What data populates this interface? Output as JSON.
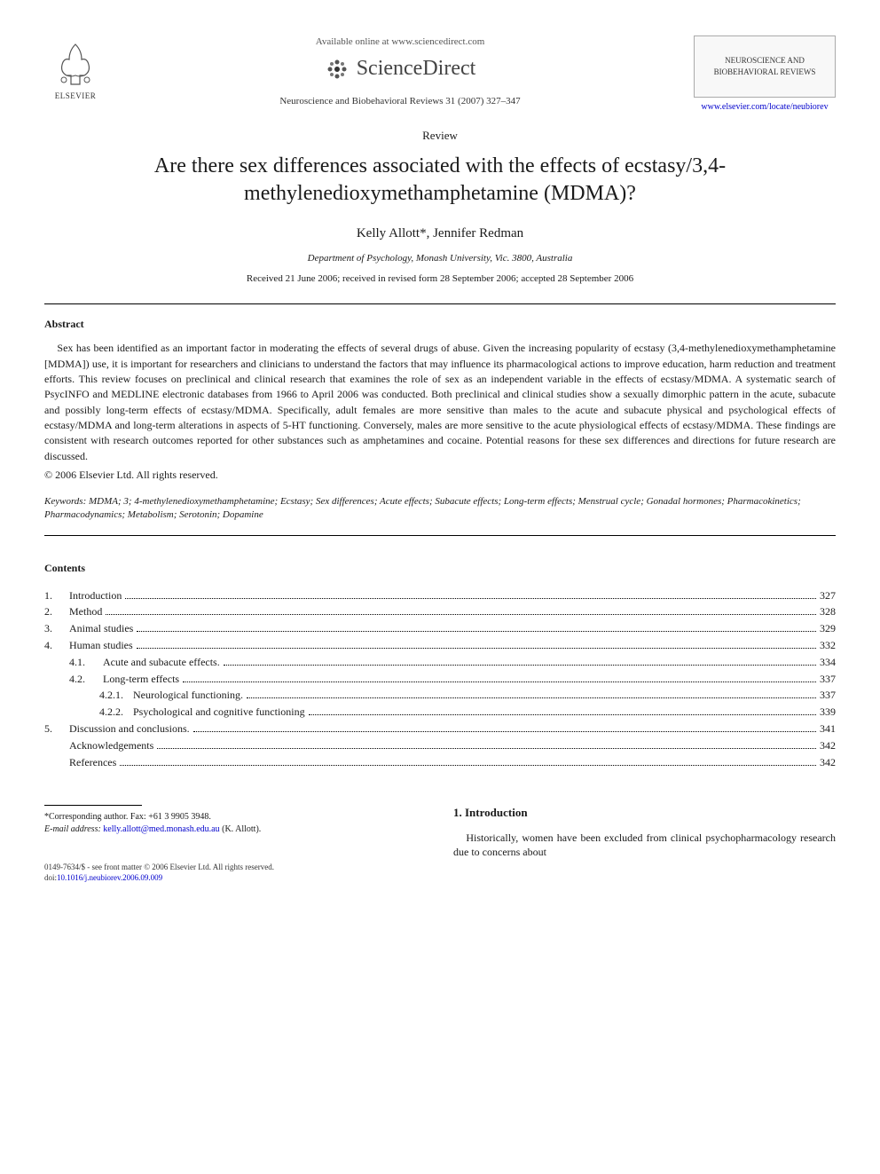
{
  "header": {
    "available_online": "Available online at www.sciencedirect.com",
    "sciencedirect": "ScienceDirect",
    "journal_ref": "Neuroscience and Biobehavioral Reviews 31 (2007) 327–347",
    "journal_box": "NEUROSCIENCE AND BIOBEHAVIORAL REVIEWS",
    "journal_link": "www.elsevier.com/locate/neubiorev",
    "elsevier": "ELSEVIER"
  },
  "article": {
    "type": "Review",
    "title": "Are there sex differences associated with the effects of ecstasy/3,4-methylenedioxymethamphetamine (MDMA)?",
    "authors": "Kelly Allott*, Jennifer Redman",
    "affiliation": "Department of Psychology, Monash University, Vic. 3800, Australia",
    "dates": "Received 21 June 2006; received in revised form 28 September 2006; accepted 28 September 2006"
  },
  "abstract": {
    "heading": "Abstract",
    "text": "Sex has been identified as an important factor in moderating the effects of several drugs of abuse. Given the increasing popularity of ecstasy (3,4-methylenedioxymethamphetamine [MDMA]) use, it is important for researchers and clinicians to understand the factors that may influence its pharmacological actions to improve education, harm reduction and treatment efforts. This review focuses on preclinical and clinical research that examines the role of sex as an independent variable in the effects of ecstasy/MDMA. A systematic search of PsycINFO and MEDLINE electronic databases from 1966 to April 2006 was conducted. Both preclinical and clinical studies show a sexually dimorphic pattern in the acute, subacute and possibly long-term effects of ecstasy/MDMA. Specifically, adult females are more sensitive than males to the acute and subacute physical and psychological effects of ecstasy/MDMA and long-term alterations in aspects of 5-HT functioning. Conversely, males are more sensitive to the acute physiological effects of ecstasy/MDMA. These findings are consistent with research outcomes reported for other substances such as amphetamines and cocaine. Potential reasons for these sex differences and directions for future research are discussed.",
    "copyright": "© 2006 Elsevier Ltd. All rights reserved."
  },
  "keywords": {
    "label": "Keywords:",
    "text": "MDMA; 3; 4-methylenedioxymethamphetamine; Ecstasy; Sex differences; Acute effects; Subacute effects; Long-term effects; Menstrual cycle; Gonadal hormones; Pharmacokinetics; Pharmacodynamics; Metabolism; Serotonin; Dopamine"
  },
  "contents": {
    "heading": "Contents",
    "items": [
      {
        "num": "1.",
        "label": "Introduction",
        "page": "327",
        "indent": 0
      },
      {
        "num": "2.",
        "label": "Method",
        "page": "328",
        "indent": 0
      },
      {
        "num": "3.",
        "label": "Animal studies",
        "page": "329",
        "indent": 0
      },
      {
        "num": "4.",
        "label": "Human studies",
        "page": "332",
        "indent": 0
      },
      {
        "num": "4.1.",
        "label": "Acute and subacute effects.",
        "page": "334",
        "indent": 1
      },
      {
        "num": "4.2.",
        "label": "Long-term effects",
        "page": "337",
        "indent": 1
      },
      {
        "num": "4.2.1.",
        "label": "Neurological functioning.",
        "page": "337",
        "indent": 2
      },
      {
        "num": "4.2.2.",
        "label": "Psychological and cognitive functioning",
        "page": "339",
        "indent": 2
      },
      {
        "num": "5.",
        "label": "Discussion and conclusions.",
        "page": "341",
        "indent": 0
      },
      {
        "num": "",
        "label": "Acknowledgements",
        "page": "342",
        "indent": 0
      },
      {
        "num": "",
        "label": "References",
        "page": "342",
        "indent": 0
      }
    ]
  },
  "footnote": {
    "corr": "*Corresponding author. Fax: +61 3 9905 3948.",
    "email_label": "E-mail address:",
    "email": "kelly.allott@med.monash.edu.au",
    "email_suffix": "(K. Allott)."
  },
  "intro": {
    "heading": "1. Introduction",
    "text": "Historically, women have been excluded from clinical psychopharmacology research due to concerns about"
  },
  "bottom": {
    "line1": "0149-7634/$ - see front matter © 2006 Elsevier Ltd. All rights reserved.",
    "doi_label": "doi:",
    "doi": "10.1016/j.neubiorev.2006.09.009"
  },
  "colors": {
    "text": "#1a1a1a",
    "link": "#0000cc",
    "rule": "#000000",
    "bg": "#ffffff"
  }
}
